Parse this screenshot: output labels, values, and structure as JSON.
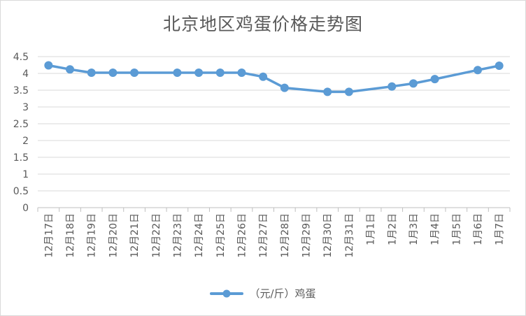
{
  "chart_data": {
    "type": "line",
    "title": "北京地区鸡蛋价格走势图",
    "xlabel": "",
    "ylabel": "",
    "ylim": [
      0,
      4.5
    ],
    "y_ticks": [
      "0",
      "0.5",
      "1",
      "1.5",
      "2",
      "2.5",
      "3",
      "3.5",
      "4",
      "4.5"
    ],
    "y_tick_values": [
      0,
      0.5,
      1,
      1.5,
      2,
      2.5,
      3,
      3.5,
      4,
      4.5
    ],
    "grid": true,
    "legend_position": "bottom",
    "categories": [
      "12月17日",
      "12月18日",
      "12月19日",
      "12月20日",
      "12月21日",
      "12月22日",
      "12月23日",
      "12月24日",
      "12月25日",
      "12月26日",
      "12月27日",
      "12月28日",
      "12月29日",
      "12月30日",
      "12月31日",
      "1月1日",
      "1月2日",
      "1月3日",
      "1月4日",
      "1月5日",
      "1月6日",
      "1月7日"
    ],
    "series": [
      {
        "name": "（元/斤）鸡蛋",
        "color": "#5b9bd5",
        "values": [
          4.24,
          4.12,
          4.02,
          4.02,
          4.02,
          null,
          4.02,
          4.02,
          4.02,
          4.02,
          3.9,
          3.57,
          null,
          3.45,
          3.45,
          null,
          3.61,
          3.7,
          3.83,
          null,
          4.1,
          4.23
        ]
      }
    ]
  }
}
